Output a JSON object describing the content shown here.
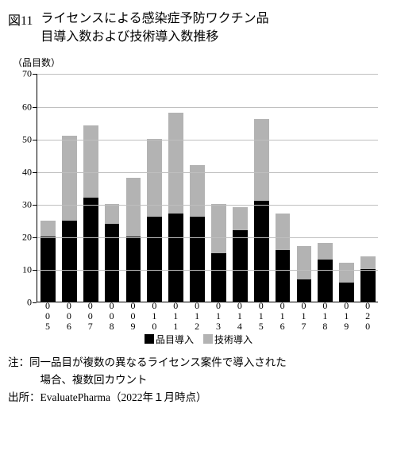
{
  "title": {
    "prefix": "図11",
    "line1": "ライセンスによる感染症予防ワクチン品",
    "line2": "目導入数および技術導入数推移"
  },
  "chart": {
    "type": "bar-stacked",
    "ylabel": "（品目数）",
    "ylim": [
      0,
      70
    ],
    "ytick_step": 10,
    "yticks": [
      0,
      10,
      20,
      30,
      40,
      50,
      60,
      70
    ],
    "grid_color": "#bfbfbf",
    "background_color": "#ffffff",
    "axis_color": "#000000",
    "bar_gap_ratio": 0.3,
    "categories": [
      "2005",
      "2006",
      "2007",
      "2008",
      "2009",
      "2010",
      "2011",
      "2012",
      "2013",
      "2014",
      "2015",
      "2016",
      "2017",
      "2018",
      "2019",
      "2020"
    ],
    "series": [
      {
        "key": "hinmoku",
        "label": "品目導入",
        "color": "#000000",
        "values": [
          20,
          25,
          32,
          24,
          20,
          26,
          27,
          26,
          15,
          22,
          31,
          16,
          7,
          13,
          6,
          10
        ]
      },
      {
        "key": "gijutsu",
        "label": "技術導入",
        "color": "#b3b3b3",
        "values": [
          5,
          26,
          22,
          6,
          18,
          24,
          31,
          16,
          15,
          7,
          25,
          11,
          10,
          5,
          6,
          4
        ]
      }
    ],
    "label_fontsize": 12,
    "tick_fontsize": 12
  },
  "notes": {
    "note_prefix": "注：",
    "note_line1": "同一品目が複数の異なるライセンス案件で導入された",
    "note_line2": "場合、複数回カウント",
    "source_prefix": "出所：",
    "source_text": "EvaluatePharma（2022年１月時点）"
  }
}
